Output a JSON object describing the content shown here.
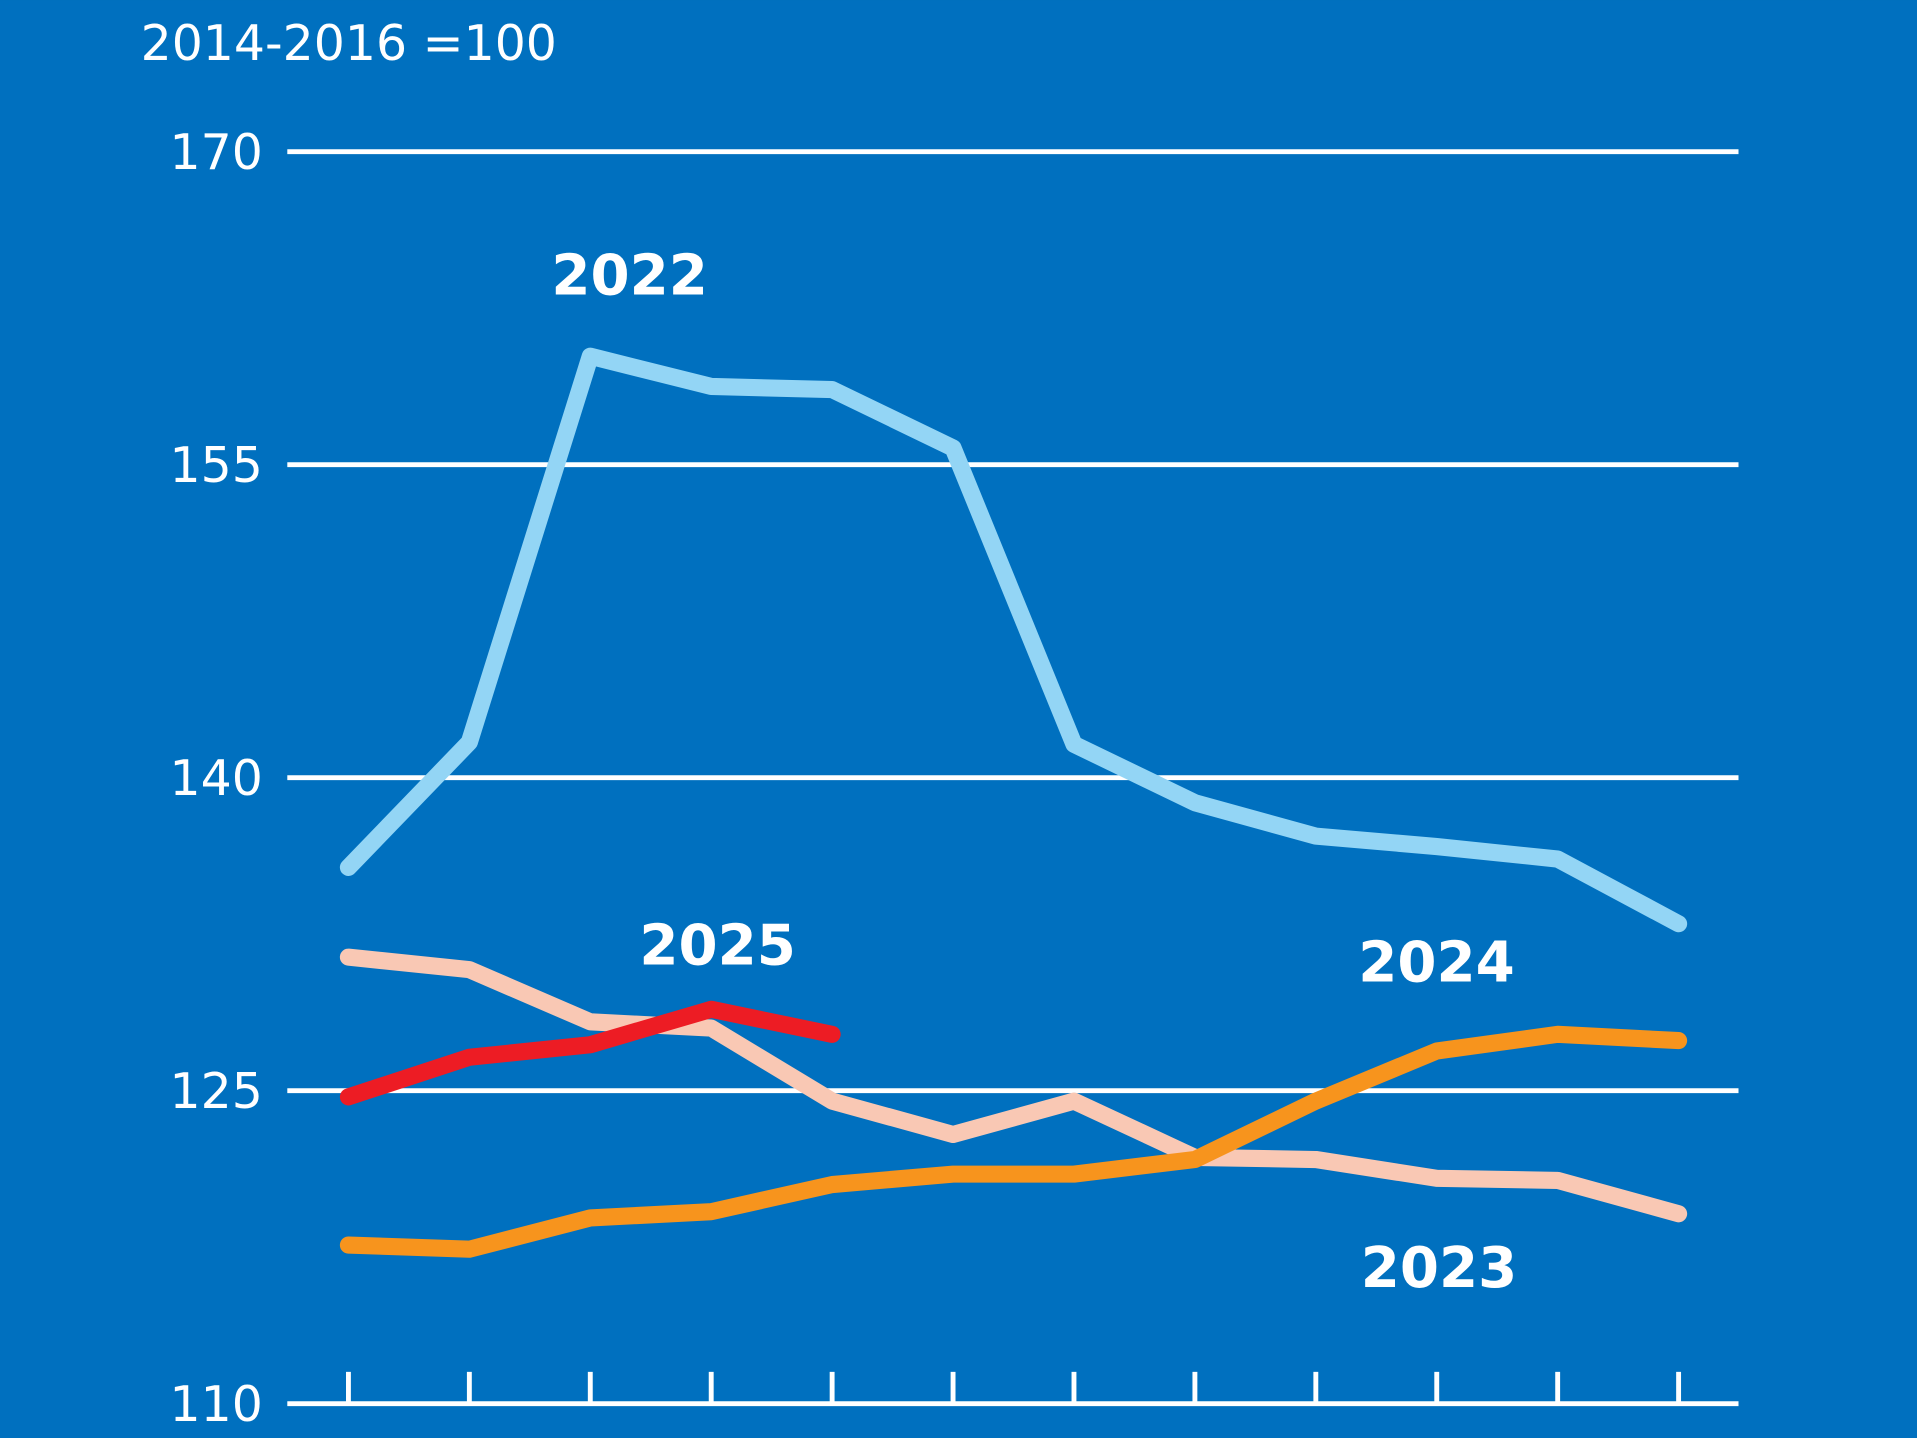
{
  "chart_data": {
    "type": "line",
    "y_label": "2014-2016 =100",
    "categories": [
      null,
      null,
      null,
      null,
      null,
      null,
      null,
      null,
      null,
      null,
      null,
      null
    ],
    "series": [
      {
        "name": "2022",
        "color": "#93d5f5",
        "values": [
          135.7,
          141.7,
          160.2,
          158.75,
          158.6,
          155.8,
          141.6,
          138.8,
          137.2,
          136.7,
          136.1,
          133.0
        ]
      },
      {
        "name": "2023",
        "color": "#f9c8b4",
        "values": [
          131.4,
          130.8,
          128.3,
          128.0,
          124.5,
          122.9,
          124.5,
          121.8,
          121.7,
          120.8,
          120.7,
          119.1
        ]
      },
      {
        "name": "2024",
        "color": "#f7941d",
        "values": [
          117.6,
          117.4,
          118.9,
          119.2,
          120.5,
          121.0,
          121.0,
          121.7,
          124.5,
          126.9,
          127.7,
          127.4
        ]
      },
      {
        "name": "2025",
        "color": "#ed1c24",
        "values": [
          124.7,
          126.6,
          127.2,
          128.9,
          127.7,
          null,
          null,
          null,
          null,
          null,
          null,
          null
        ]
      }
    ],
    "ylim": [
      110,
      170
    ],
    "yticks": [
      110,
      125,
      140,
      155,
      170
    ],
    "grid": true
  }
}
